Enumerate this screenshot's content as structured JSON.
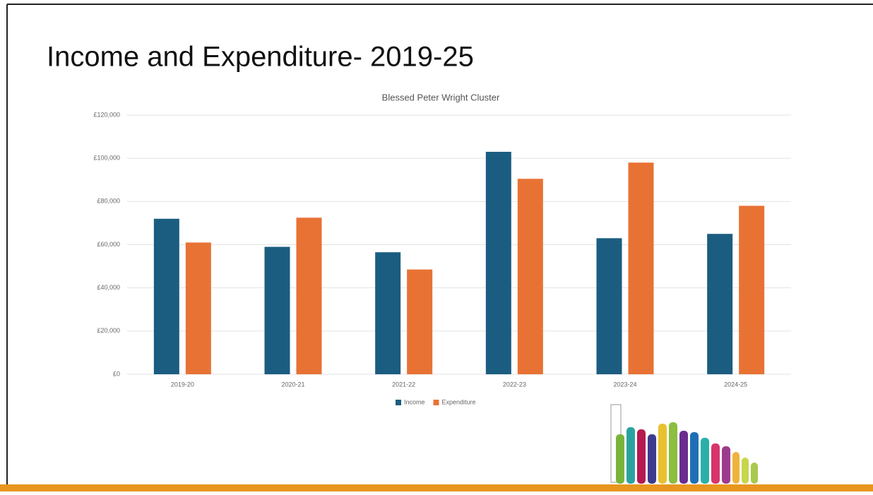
{
  "slide_title": "Income and Expenditure- 2019-25",
  "chart_data": {
    "type": "bar",
    "title": "Blessed Peter Wright Cluster",
    "categories": [
      "2019-20",
      "2020-21",
      "2021-22",
      "2022-23",
      "2023-24",
      "2024-25"
    ],
    "series": [
      {
        "name": "Income",
        "color": "#1b5d80",
        "values": [
          72000,
          59000,
          56500,
          103000,
          63000,
          65000
        ]
      },
      {
        "name": "Expenditure",
        "color": "#e87234",
        "values": [
          61000,
          72500,
          48500,
          90500,
          98000,
          78000
        ]
      }
    ],
    "ylim": [
      0,
      120000
    ],
    "yticks": [
      {
        "value": 0,
        "label": "£0"
      },
      {
        "value": 20000,
        "label": "£20,000"
      },
      {
        "value": 40000,
        "label": "£40,000"
      },
      {
        "value": 60000,
        "label": "£60,000"
      },
      {
        "value": 80000,
        "label": "£80,000"
      },
      {
        "value": 100000,
        "label": "£100,000"
      },
      {
        "value": 120000,
        "label": "£120,000"
      }
    ],
    "grid": true,
    "legend": "bottom"
  }
}
